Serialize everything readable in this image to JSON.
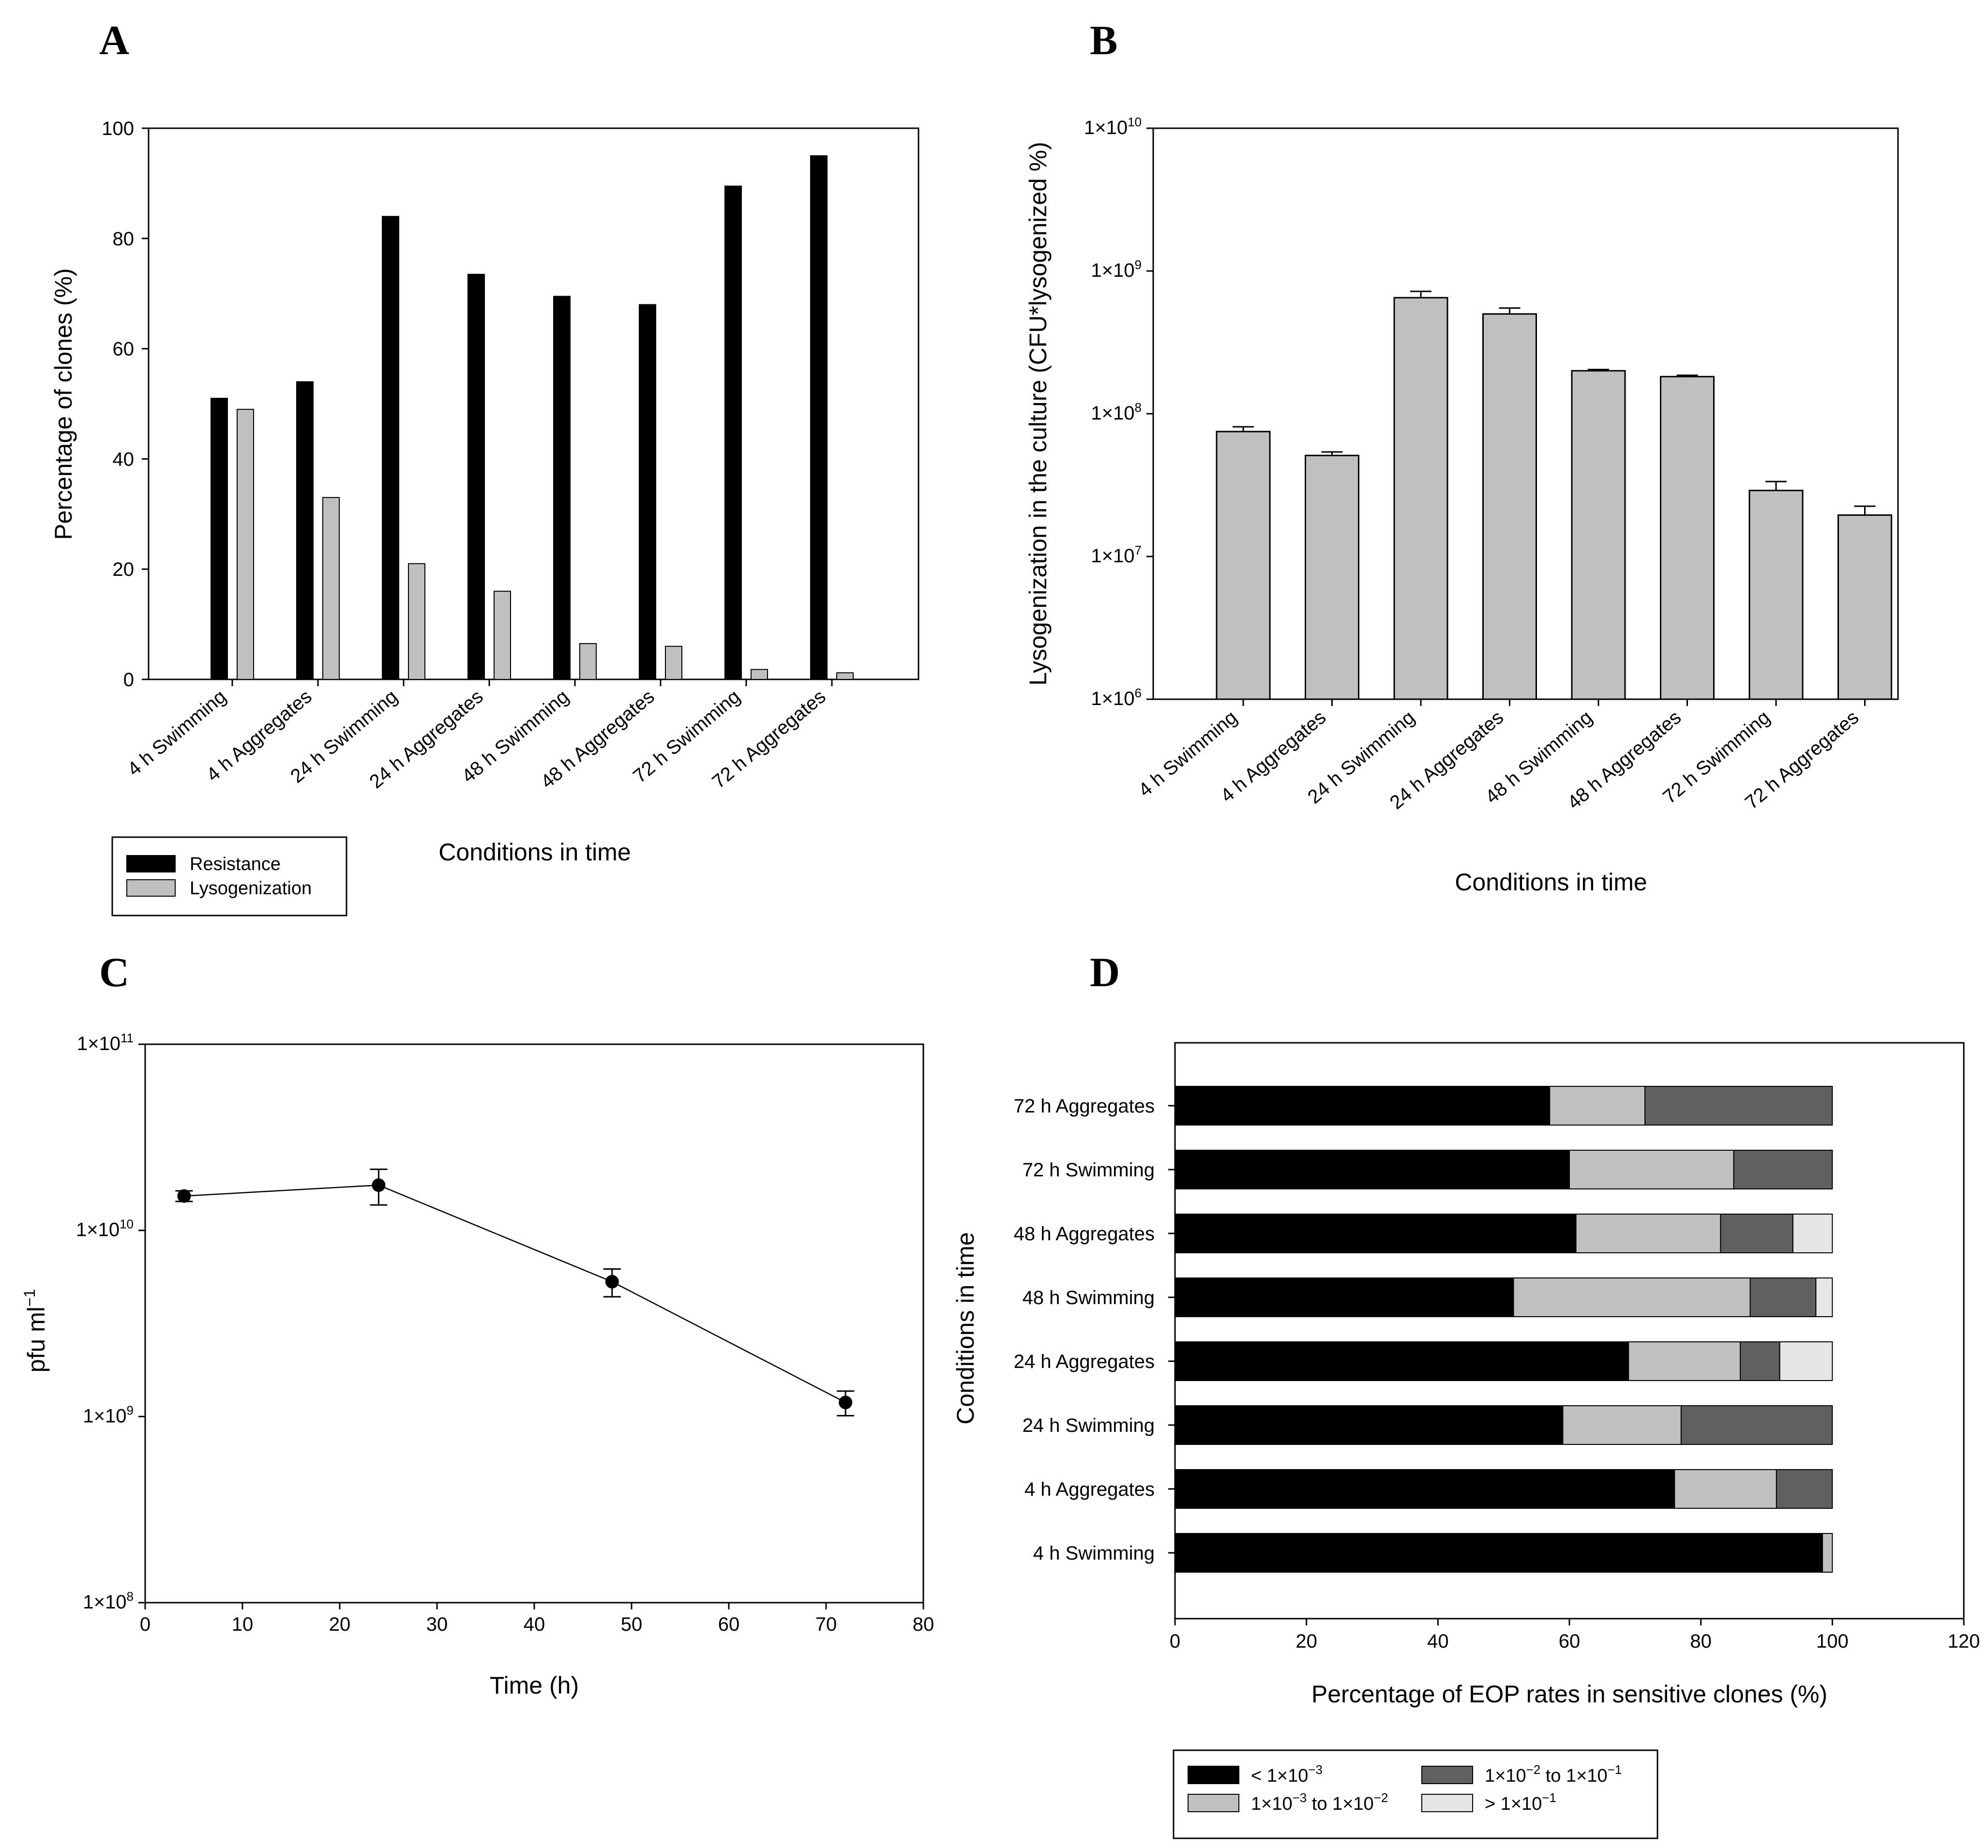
{
  "chart_data": [
    {
      "panel": "A",
      "type": "bar",
      "title": "",
      "xlabel": "Conditions in time",
      "ylabel": "Percentage of clones (%)",
      "ylim": [
        0,
        100
      ],
      "yticks": [
        0,
        20,
        40,
        60,
        80,
        100
      ],
      "categories": [
        "4 h Swimming",
        "4 h Aggregates",
        "24 h Swimming",
        "24 h Aggregates",
        "48 h Swimming",
        "48 h Aggregates",
        "72 h Swimming",
        "72 h Aggregates"
      ],
      "series": [
        {
          "name": "Resistance",
          "color": "#000000",
          "values": [
            51,
            54,
            84,
            73.5,
            69.5,
            68,
            89.5,
            95
          ]
        },
        {
          "name": "Lysogenization",
          "color": "#c0c0c0",
          "values": [
            49,
            33,
            21,
            16,
            6.5,
            6,
            1.8,
            1.2
          ]
        }
      ],
      "legend": "bottom-left, outside"
    },
    {
      "panel": "B",
      "type": "bar",
      "title": "",
      "xlabel": "Conditions in time",
      "ylabel": "Lysogenization in the culture (CFU*lysogenized %)",
      "yscale": "log",
      "ylim": [
        1000000,
        10000000000
      ],
      "yticks": [
        {
          "value": 1000000,
          "mant": "1×10",
          "exp": "6"
        },
        {
          "value": 10000000,
          "mant": "1×10",
          "exp": "7"
        },
        {
          "value": 100000000,
          "mant": "1×10",
          "exp": "8"
        },
        {
          "value": 1000000000,
          "mant": "1×10",
          "exp": "9"
        },
        {
          "value": 10000000000,
          "mant": "1×10",
          "exp": "10"
        }
      ],
      "categories": [
        "4 h Swimming",
        "4 h Aggregates",
        "24 h Swimming",
        "24 h Aggregates",
        "48 h Swimming",
        "48 h Aggregates",
        "72 h Swimming",
        "72 h Aggregates"
      ],
      "values": [
        75000000,
        51000000,
        650000000,
        500000000,
        200000000,
        182000000,
        29000000,
        19500000
      ],
      "errors": [
        6000000,
        3000000,
        70000000,
        50000000,
        4000000,
        4000000,
        4500000,
        3000000
      ],
      "color": "#c0c0c0"
    },
    {
      "panel": "C",
      "type": "line",
      "title": "",
      "xlabel": "Time (h)",
      "ylabel": "pfu ml",
      "ylabel_exp": "−1",
      "xlim": [
        0,
        80
      ],
      "xticks": [
        0,
        10,
        20,
        30,
        40,
        50,
        60,
        70,
        80
      ],
      "yscale": "log",
      "ylim": [
        100000000,
        100000000000
      ],
      "yticks": [
        {
          "value": 100000000,
          "mant": "1×10",
          "exp": "8"
        },
        {
          "value": 1000000000,
          "mant": "1×10",
          "exp": "9"
        },
        {
          "value": 10000000000,
          "mant": "1×10",
          "exp": "10"
        },
        {
          "value": 100000000000,
          "mant": "1×10",
          "exp": "11"
        }
      ],
      "x": [
        4,
        24,
        48,
        72
      ],
      "y": [
        15300000000,
        17500000000,
        5300000000,
        1190000000
      ],
      "err_low": [
        1000000000,
        3800000000,
        900000000,
        180000000
      ],
      "err_high": [
        1000000000,
        3800000000,
        900000000,
        180000000
      ]
    },
    {
      "panel": "D",
      "type": "bar",
      "orientation": "horizontal",
      "stacked": true,
      "title": "",
      "xlabel": "Percentage of EOP rates in sensitive clones (%)",
      "ylabel": "Conditions in time",
      "xlim": [
        0,
        120
      ],
      "xticks": [
        0,
        20,
        40,
        60,
        80,
        100,
        120
      ],
      "categories": [
        "4 h Swimming",
        "4 h Aggregates",
        "24 h Swimming",
        "24 h Aggregates",
        "48 h Swimming",
        "48 h Aggregates",
        "72 h Swimming",
        "72 h Aggregates"
      ],
      "series": [
        {
          "name": "< 1×10",
          "exp": "−3",
          "color": "#000000",
          "values": [
            98.5,
            76,
            59,
            69,
            51.5,
            61,
            60,
            57
          ]
        },
        {
          "name": "1×10",
          "exp": "−3",
          "name2": " to 1×10",
          "exp2": "−2",
          "color": "#c0c0c0",
          "values": [
            1.5,
            15.5,
            18,
            17,
            36,
            22,
            25,
            14.5
          ]
        },
        {
          "name": "1×10",
          "exp": "−2",
          "name2": " to 1×10",
          "exp2": "−1",
          "color": "#606060",
          "values": [
            0,
            8.5,
            23,
            6,
            10,
            11,
            15,
            28.5
          ]
        },
        {
          "name": "> 1×10",
          "exp": "−1",
          "color": "#e6e6e6",
          "values": [
            0,
            0,
            0,
            8,
            2.5,
            6,
            0,
            0
          ]
        }
      ]
    }
  ]
}
